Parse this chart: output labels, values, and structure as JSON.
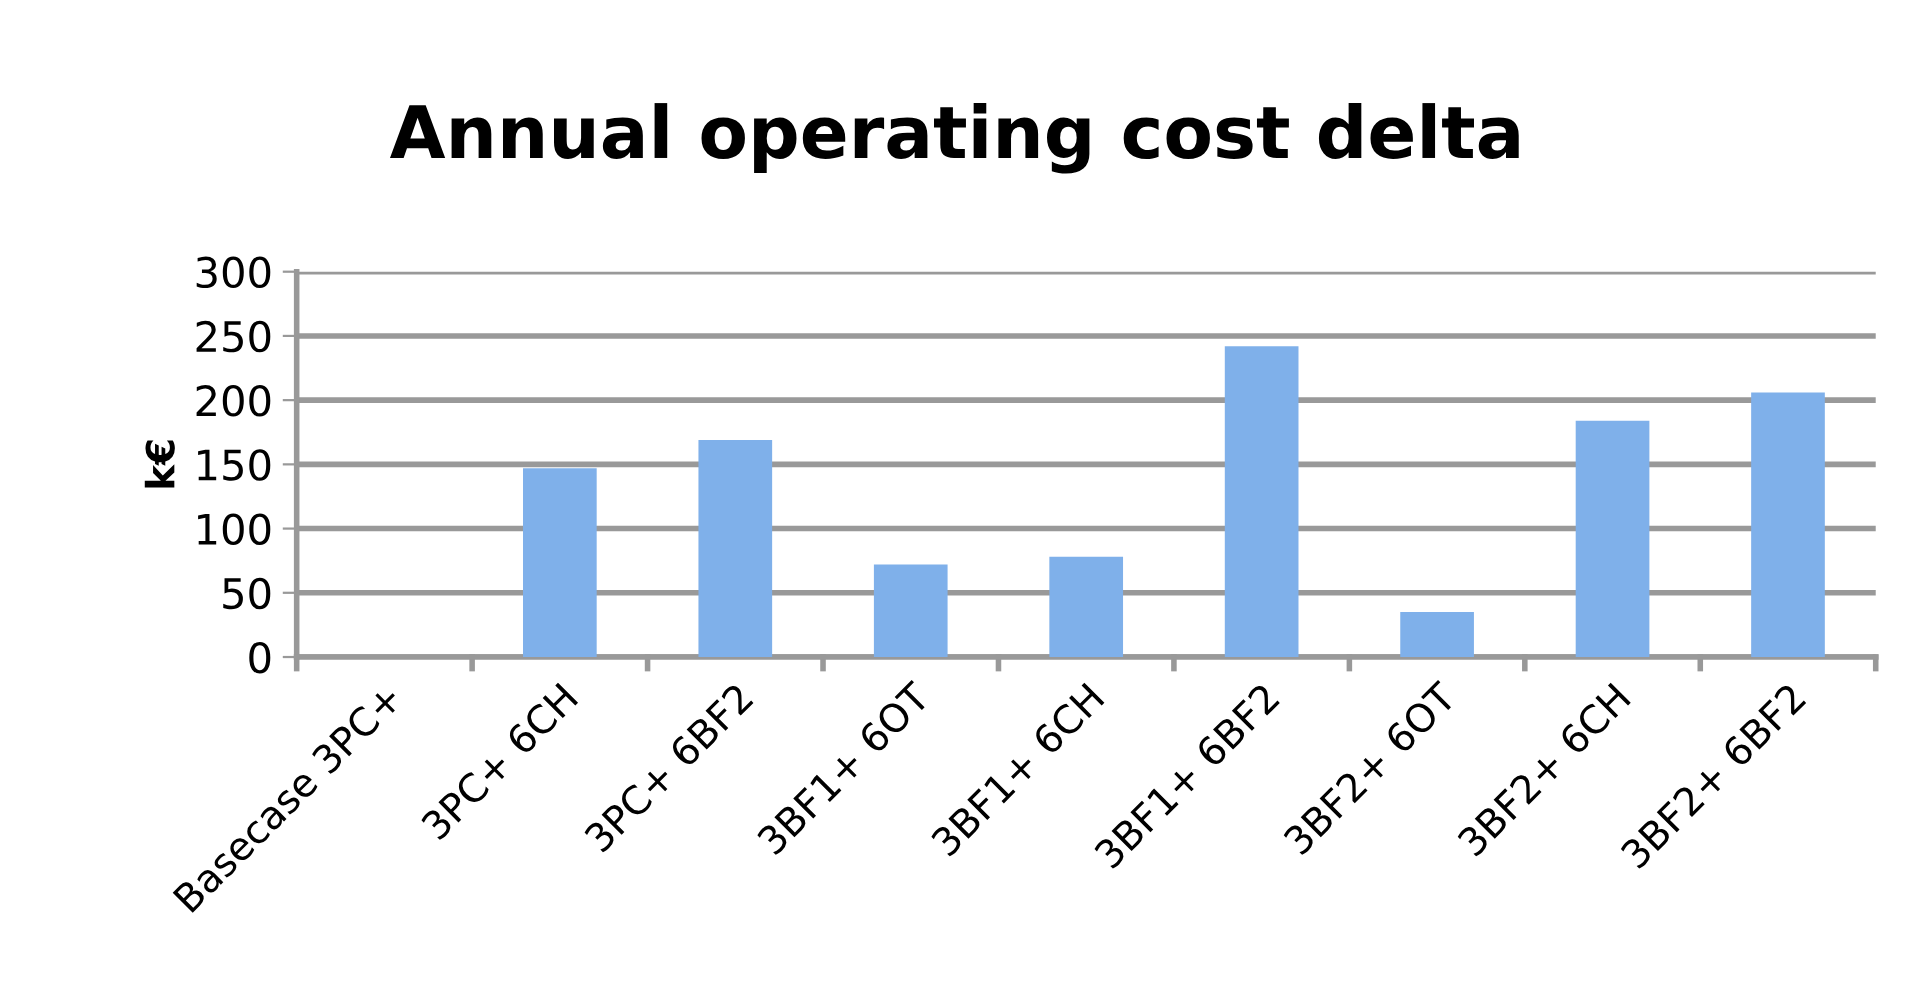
{
  "chart_data": {
    "type": "bar",
    "title": "Annual operating cost delta",
    "ylabel": "k€",
    "categories": [
      "Basecase 3PC+",
      "3PC+ 6CH",
      "3PC+ 6BF2",
      "3BF1+ 6OT",
      "3BF1+ 6CH",
      "3BF1+ 6BF2",
      "3BF2+ 6OT",
      "3BF2+ 6CH",
      "3BF2+ 6BF2"
    ],
    "values": [
      0,
      147,
      169,
      72,
      78,
      242,
      35,
      184,
      206
    ],
    "color": "#7fb0ea",
    "ylim": [
      0,
      300
    ],
    "yticks": [
      0,
      50,
      100,
      150,
      200,
      250,
      300
    ],
    "grid": "y"
  }
}
